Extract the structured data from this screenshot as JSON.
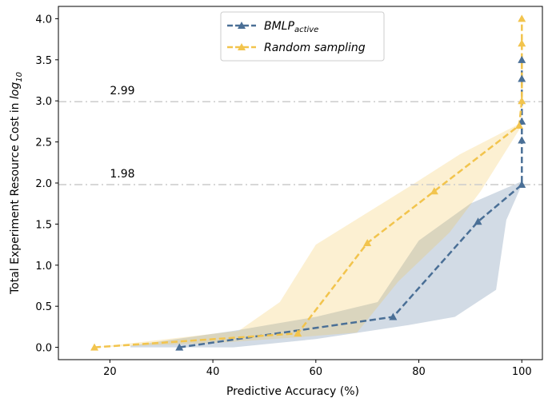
{
  "chart_data": {
    "type": "line",
    "xlabel": "Predictive Accuracy (%)",
    "ylabel_main": "Total Experiment Resource Cost in ",
    "ylabel_log": "log",
    "ylabel_sub": "10",
    "xlim": [
      10,
      104
    ],
    "ylim": [
      -0.15,
      4.15
    ],
    "xticks": [
      20,
      40,
      60,
      80,
      100
    ],
    "yticks": [
      0.0,
      0.5,
      1.0,
      1.5,
      2.0,
      2.5,
      3.0,
      3.5,
      4.0
    ],
    "ytick_labels": [
      "0.0",
      "0.5",
      "1.0",
      "1.5",
      "2.0",
      "2.5",
      "3.0",
      "3.5",
      "4.0"
    ],
    "grid": false,
    "legend_position": "top-center",
    "reference_lines": [
      {
        "y": 2.99,
        "label": "2.99",
        "style": "dashdot",
        "color": "#cccccc"
      },
      {
        "y": 1.98,
        "label": "1.98",
        "style": "dashdot",
        "color": "#cccccc"
      }
    ],
    "series": [
      {
        "key": "bmlp",
        "name_main": "BMLP",
        "name_sub": "active",
        "color": "#4a6f96",
        "marker": "triangle",
        "x": [
          33.5,
          75.0,
          91.5,
          100.0,
          100.0,
          100.0,
          100.0,
          100.0
        ],
        "y": [
          0.0,
          0.37,
          1.53,
          1.98,
          2.52,
          2.75,
          3.27,
          3.5
        ],
        "band_upper": [
          [
            24,
            0.02
          ],
          [
            44,
            0.2
          ],
          [
            60,
            0.37
          ],
          [
            72,
            0.55
          ],
          [
            80,
            1.3
          ],
          [
            90,
            1.75
          ],
          [
            100,
            2.02
          ],
          [
            100,
            3.5
          ]
        ],
        "band_lower": [
          [
            100,
            3.5
          ],
          [
            100,
            1.98
          ],
          [
            97,
            1.55
          ],
          [
            95,
            0.7
          ],
          [
            87,
            0.37
          ],
          [
            78,
            0.27
          ],
          [
            60,
            0.1
          ],
          [
            44,
            0.0
          ],
          [
            24,
            0.0
          ]
        ]
      },
      {
        "key": "random",
        "name_main": "Random sampling",
        "name_sub": "",
        "color": "#f2c44d",
        "marker": "triangle",
        "x": [
          17.0,
          56.5,
          70.0,
          83.0,
          99.5,
          100.0,
          100.0,
          100.0
        ],
        "y": [
          0.0,
          0.17,
          1.27,
          1.9,
          2.7,
          3.0,
          3.7,
          4.0
        ],
        "band_upper": [
          [
            17,
            0.0
          ],
          [
            45,
            0.2
          ],
          [
            53,
            0.55
          ],
          [
            60,
            1.25
          ],
          [
            78,
            1.95
          ],
          [
            88,
            2.35
          ],
          [
            99.5,
            2.72
          ],
          [
            100,
            4.0
          ]
        ],
        "band_lower": [
          [
            100,
            4.0
          ],
          [
            99.5,
            2.65
          ],
          [
            92,
            1.9
          ],
          [
            86,
            1.4
          ],
          [
            76,
            0.8
          ],
          [
            68,
            0.18
          ],
          [
            56,
            0.12
          ],
          [
            40,
            0.05
          ],
          [
            17,
            0.0
          ]
        ]
      }
    ]
  }
}
